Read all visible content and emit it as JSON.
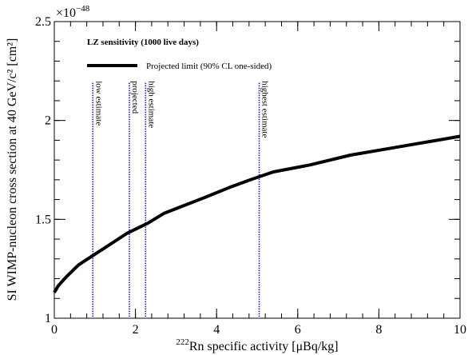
{
  "chart_data": {
    "type": "line",
    "xlabel_sup": "222",
    "xlabel_main": "Rn specific activity [μBq/kg]",
    "ylabel": "SI WIMP-nucleon cross section at 40 GeV/c² [cm²]",
    "y_exponent_prefix": "×10",
    "y_exponent_power": "−48",
    "xlim": [
      0,
      10
    ],
    "ylim": [
      1.0,
      2.5
    ],
    "x_ticks": [
      0,
      2,
      4,
      6,
      8,
      10
    ],
    "x_tick_labels": [
      "0",
      "2",
      "4",
      "6",
      "8",
      "10"
    ],
    "y_ticks": [
      1.0,
      1.5,
      2.0,
      2.5
    ],
    "y_tick_labels": [
      "1",
      "1.5",
      "2",
      "2.5"
    ],
    "legend_title": "LZ sensitivity (1000 live days)",
    "legend_placement": "top-left",
    "series": [
      {
        "name": "Projected limit (90% CL one-sided)",
        "color": "#000000",
        "x": [
          0.0,
          0.1,
          0.3,
          0.6,
          0.9,
          1.2,
          1.5,
          1.8,
          2.3,
          2.7,
          3.2,
          3.7,
          4.3,
          4.9,
          5.4,
          6.3,
          7.3,
          8.3,
          9.3,
          10.0
        ],
        "y": [
          1.13,
          1.165,
          1.21,
          1.27,
          1.31,
          1.35,
          1.39,
          1.43,
          1.48,
          1.53,
          1.57,
          1.61,
          1.66,
          1.705,
          1.74,
          1.775,
          1.825,
          1.86,
          1.895,
          1.92
        ]
      }
    ],
    "vertical_lines": [
      {
        "x": 0.95,
        "label": "low estimate",
        "color": "#1a1ab4"
      },
      {
        "x": 1.85,
        "label": "projected",
        "color": "#1a1ab4"
      },
      {
        "x": 2.25,
        "label": "high estimate",
        "color": "#1a1ab4"
      },
      {
        "x": 5.05,
        "label": "highest estimate",
        "color": "#1a1ab4"
      }
    ]
  }
}
